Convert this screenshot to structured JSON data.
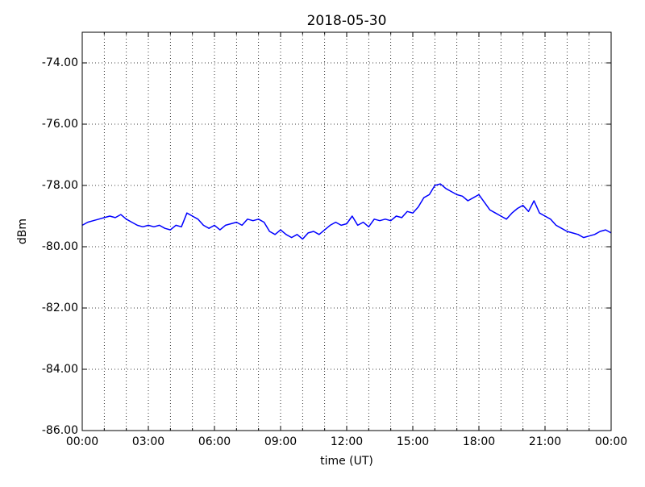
{
  "chart_data": {
    "type": "line",
    "title": "2018-05-30",
    "x_label": "time (UT)",
    "y_label": "dBm",
    "grid": true,
    "xlim": [
      0,
      24
    ],
    "ylim": [
      -86,
      -73
    ],
    "xticks": [
      {
        "value": 0,
        "label": "00:00"
      },
      {
        "value": 3,
        "label": "03:00"
      },
      {
        "value": 6,
        "label": "06:00"
      },
      {
        "value": 9,
        "label": "09:00"
      },
      {
        "value": 12,
        "label": "12:00"
      },
      {
        "value": 15,
        "label": "15:00"
      },
      {
        "value": 18,
        "label": "18:00"
      },
      {
        "value": 21,
        "label": "21:00"
      },
      {
        "value": 24,
        "label": "00:00"
      }
    ],
    "xminorticks": [
      1,
      2,
      4,
      5,
      7,
      8,
      10,
      11,
      13,
      14,
      16,
      17,
      19,
      20,
      22,
      23
    ],
    "yticks": [
      {
        "value": -86,
        "label": "-86.00"
      },
      {
        "value": -84,
        "label": "-84.00"
      },
      {
        "value": -82,
        "label": "-82.00"
      },
      {
        "value": -80,
        "label": "-80.00"
      },
      {
        "value": -78,
        "label": "-78.00"
      },
      {
        "value": -76,
        "label": "-76.00"
      },
      {
        "value": -74,
        "label": "-74.00"
      }
    ],
    "x": [
      0,
      0.25,
      0.5,
      0.75,
      1,
      1.25,
      1.5,
      1.75,
      2,
      2.25,
      2.5,
      2.75,
      3,
      3.25,
      3.5,
      3.75,
      4,
      4.25,
      4.5,
      4.75,
      5,
      5.25,
      5.5,
      5.75,
      6,
      6.25,
      6.5,
      6.75,
      7,
      7.25,
      7.5,
      7.75,
      8,
      8.25,
      8.5,
      8.75,
      9,
      9.25,
      9.5,
      9.75,
      10,
      10.25,
      10.5,
      10.75,
      11,
      11.25,
      11.5,
      11.75,
      12,
      12.25,
      12.5,
      12.75,
      13,
      13.25,
      13.5,
      13.75,
      14,
      14.25,
      14.5,
      14.75,
      15,
      15.25,
      15.5,
      15.75,
      16,
      16.25,
      16.5,
      16.75,
      17,
      17.25,
      17.5,
      17.75,
      18,
      18.25,
      18.5,
      18.75,
      19,
      19.25,
      19.5,
      19.75,
      20,
      20.25,
      20.5,
      20.75,
      21,
      21.25,
      21.5,
      21.75,
      22,
      22.25,
      22.5,
      22.75,
      23,
      23.25,
      23.5,
      23.75,
      24
    ],
    "series": [
      {
        "name": "dBm",
        "color": "#0000ff",
        "values": [
          -79.3,
          -79.2,
          -79.15,
          -79.1,
          -79.05,
          -79.0,
          -79.05,
          -78.95,
          -79.1,
          -79.2,
          -79.3,
          -79.35,
          -79.3,
          -79.35,
          -79.3,
          -79.4,
          -79.45,
          -79.3,
          -79.35,
          -78.9,
          -79.0,
          -79.1,
          -79.3,
          -79.4,
          -79.3,
          -79.45,
          -79.3,
          -79.25,
          -79.2,
          -79.3,
          -79.1,
          -79.15,
          -79.1,
          -79.2,
          -79.5,
          -79.6,
          -79.45,
          -79.6,
          -79.7,
          -79.6,
          -79.75,
          -79.55,
          -79.5,
          -79.6,
          -79.45,
          -79.3,
          -79.2,
          -79.3,
          -79.25,
          -79.0,
          -79.3,
          -79.2,
          -79.35,
          -79.1,
          -79.15,
          -79.1,
          -79.15,
          -79.0,
          -79.05,
          -78.85,
          -78.9,
          -78.7,
          -78.4,
          -78.3,
          -78.0,
          -77.95,
          -78.1,
          -78.2,
          -78.3,
          -78.35,
          -78.5,
          -78.4,
          -78.3,
          -78.55,
          -78.8,
          -78.9,
          -79.0,
          -79.1,
          -78.9,
          -78.75,
          -78.65,
          -78.85,
          -78.5,
          -78.9,
          -79.0,
          -79.1,
          -79.3,
          -79.4,
          -79.5,
          -79.55,
          -79.6,
          -79.7,
          -79.65,
          -79.6,
          -79.5,
          -79.45,
          -79.55
        ]
      }
    ]
  }
}
